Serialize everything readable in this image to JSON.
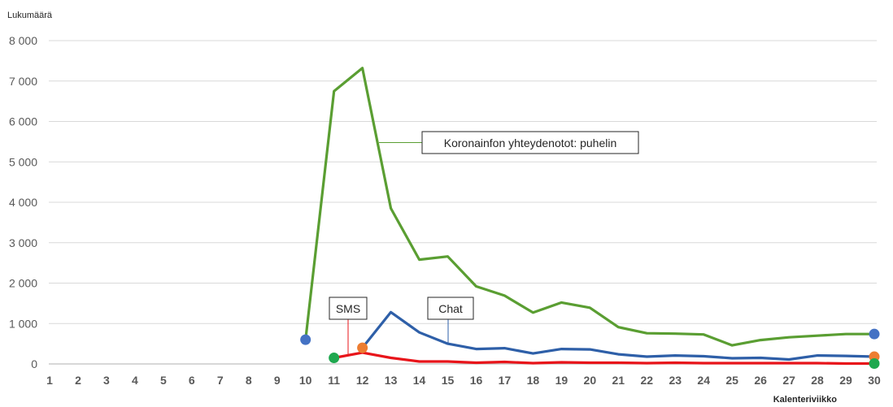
{
  "chart_data": {
    "type": "line",
    "ylabel": "Lukumäärä",
    "xlabel": "Kalenteriviikko",
    "ylim": [
      0,
      8000
    ],
    "yticks": [
      0,
      1000,
      2000,
      3000,
      4000,
      5000,
      6000,
      7000,
      8000
    ],
    "ytick_labels": [
      "0",
      "1 000",
      "2 000",
      "3 000",
      "4 000",
      "5 000",
      "6 000",
      "7 000",
      "8 000"
    ],
    "categories": [
      "1",
      "2",
      "3",
      "4",
      "5",
      "6",
      "7",
      "8",
      "9",
      "10",
      "11",
      "12",
      "13",
      "14",
      "15",
      "16",
      "17",
      "18",
      "19",
      "20",
      "21",
      "22",
      "23",
      "24",
      "25",
      "26",
      "27",
      "28",
      "29",
      "30"
    ],
    "grid": true,
    "series": [
      {
        "name": "Koronainfon yhteydenotot: puhelin",
        "color": "#5a9e32",
        "x": [
          10,
          11,
          12,
          13,
          14,
          15,
          16,
          17,
          18,
          19,
          20,
          21,
          22,
          23,
          24,
          25,
          26,
          27,
          28,
          29,
          30
        ],
        "values": [
          600,
          6750,
          7320,
          3850,
          2580,
          2660,
          1920,
          1690,
          1270,
          1520,
          1390,
          910,
          760,
          750,
          730,
          460,
          590,
          660,
          700,
          740,
          740
        ],
        "start_marker_color": "#4472c4",
        "end_marker_color": "#4472c4"
      },
      {
        "name": "Chat",
        "color": "#2e5fa8",
        "x": [
          12,
          13,
          14,
          15,
          16,
          17,
          18,
          19,
          20,
          21,
          22,
          23,
          24,
          25,
          26,
          27,
          28,
          29,
          30
        ],
        "values": [
          400,
          1280,
          780,
          500,
          370,
          390,
          260,
          370,
          360,
          240,
          180,
          210,
          190,
          140,
          150,
          110,
          210,
          200,
          180
        ],
        "start_marker_color": "#ed7d31",
        "end_marker_color": "#ed7d31"
      },
      {
        "name": "SMS",
        "color": "#e8141a",
        "x": [
          11,
          12,
          13,
          14,
          15,
          16,
          17,
          18,
          19,
          20,
          21,
          22,
          23,
          24,
          25,
          26,
          27,
          28,
          29,
          30
        ],
        "values": [
          150,
          280,
          150,
          60,
          60,
          30,
          50,
          20,
          40,
          30,
          30,
          20,
          30,
          20,
          20,
          20,
          20,
          20,
          10,
          10
        ],
        "start_marker_color": "#1fa84f",
        "end_marker_color": "#1fa84f"
      }
    ],
    "annotations": [
      {
        "text": "Koronainfon yhteydenotot: puhelin",
        "series": 0
      },
      {
        "text": "SMS",
        "series": 2
      },
      {
        "text": "Chat",
        "series": 1
      }
    ]
  }
}
